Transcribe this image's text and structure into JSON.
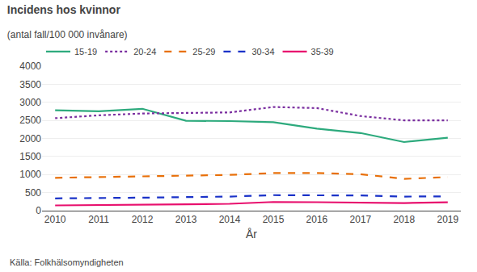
{
  "chart_data": {
    "type": "line",
    "title": "Incidens hos kvinnor",
    "subtitle": "(antal fall/100 000 invånare)",
    "xlabel": "År",
    "annotations": [
      "Källa: Folkhälsomyndigheten"
    ],
    "x": [
      2010,
      2011,
      2012,
      2013,
      2014,
      2015,
      2016,
      2017,
      2018,
      2019
    ],
    "xlim": [
      2009.7,
      2019.3
    ],
    "xticks": [
      2010,
      2011,
      2012,
      2013,
      2014,
      2015,
      2016,
      2017,
      2018,
      2019
    ],
    "ylim": [
      0,
      4000
    ],
    "yticks": [
      0,
      500,
      1000,
      1500,
      2000,
      2500,
      3000,
      3500,
      4000
    ],
    "grid": true,
    "legend": "top",
    "series": [
      {
        "name": "15-19",
        "color": "#2daa7d",
        "line_style": "solid",
        "values": [
          2780,
          2750,
          2820,
          2490,
          2480,
          2450,
          2270,
          2150,
          1900,
          2020
        ]
      },
      {
        "name": "20-24",
        "color": "#7b2fa0",
        "line_style": "dotted",
        "values": [
          2560,
          2640,
          2690,
          2700,
          2720,
          2870,
          2840,
          2620,
          2500,
          2500
        ]
      },
      {
        "name": "25-29",
        "color": "#e8700a",
        "line_style": "dashed",
        "values": [
          910,
          930,
          950,
          970,
          990,
          1040,
          1040,
          1010,
          880,
          930
        ]
      },
      {
        "name": "30-34",
        "color": "#1a32c8",
        "line_style": "dashed",
        "values": [
          340,
          345,
          360,
          375,
          390,
          430,
          430,
          420,
          390,
          395
        ]
      },
      {
        "name": "35-39",
        "color": "#e8106e",
        "line_style": "solid",
        "values": [
          145,
          150,
          158,
          175,
          190,
          240,
          235,
          220,
          210,
          230
        ]
      }
    ]
  }
}
